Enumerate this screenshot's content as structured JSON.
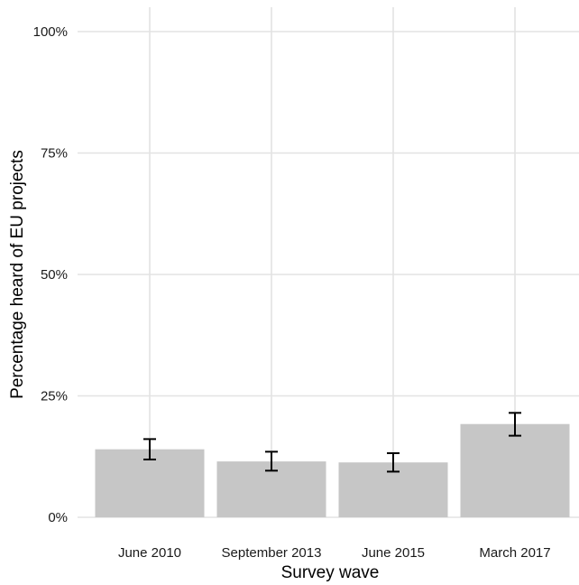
{
  "chart_data": {
    "type": "bar",
    "categories": [
      "June 2010",
      "September 2013",
      "June 2015",
      "March 2017"
    ],
    "values": [
      14.0,
      11.5,
      11.3,
      19.2
    ],
    "error_low": [
      11.9,
      9.6,
      9.4,
      16.8
    ],
    "error_high": [
      16.1,
      13.5,
      13.2,
      21.5
    ],
    "xlabel": "Survey wave",
    "ylabel": "Percentage heard of EU projects",
    "ylim": [
      0,
      100
    ],
    "yticks": [
      0,
      25,
      50,
      75,
      100
    ],
    "ytick_labels": [
      "0%",
      "25%",
      "50%",
      "75%",
      "100%"
    ],
    "grid": true,
    "legend": "none",
    "colors": {
      "bar": "#c6c6c6",
      "grid": "#e3e3e3",
      "error_bar": "#000000"
    }
  }
}
